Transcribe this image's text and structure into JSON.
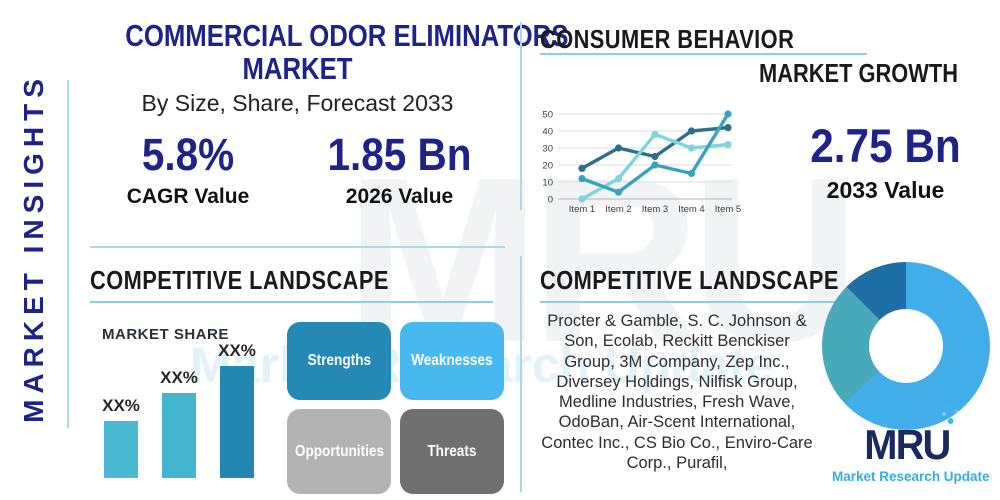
{
  "sidebar": {
    "label": "MARKET INSIGHTS"
  },
  "header": {
    "title_line1": "COMMERCIAL ODOR ELIMINATORS",
    "title_line2": "MARKET",
    "subtitle": "By Size, Share, Forecast 2033"
  },
  "stats": {
    "cagr_value": "5.8%",
    "cagr_label": "CAGR Value",
    "value_2026": "1.85 Bn",
    "label_2026": "2026 Value",
    "value_2033": "2.75 Bn",
    "label_2033": "2033 Value"
  },
  "sections": {
    "consumer_behavior_title": "CONSUMER BEHAVIOR",
    "market_growth_title": "MARKET GROWTH",
    "competitive_left_title": "COMPETITIVE LANDSCAPE",
    "competitive_right_title": "COMPETITIVE LANDSCAPE",
    "companies": "Procter & Gamble, S. C. Johnson & Son, Ecolab, Reckitt Benckiser Group, 3M Company, Zep Inc., Diversey Holdings, Nilfisk Group, Medline Industries, Fresh Wave, OdoBan, Air-Scent International, Contec Inc., CS Bio Co., Enviro-Care Corp., Purafil,"
  },
  "swot": {
    "items": [
      {
        "label": "Strengths",
        "color": "#2589b6"
      },
      {
        "label": "Weaknesses",
        "color": "#47b9f0"
      },
      {
        "label": "Opportunities",
        "color": "#b3b3b3"
      },
      {
        "label": "Threats",
        "color": "#6f6f6f"
      }
    ]
  },
  "chart_data": [
    {
      "type": "line",
      "title": "",
      "categories": [
        "Item 1",
        "Item 2",
        "Item 3",
        "Item 4",
        "Item 5"
      ],
      "series": [
        {
          "color": "#2e6d8e",
          "values": [
            18,
            30,
            25,
            40,
            42
          ]
        },
        {
          "color": "#38a3c1",
          "values": [
            12,
            4,
            20,
            15,
            50
          ]
        },
        {
          "color": "#7fd6d8",
          "values": [
            0,
            12,
            38,
            30,
            32
          ]
        }
      ],
      "ylim": [
        0,
        50
      ],
      "yticks": [
        0,
        10,
        20,
        30,
        40,
        50
      ],
      "grid": true,
      "legend": false
    },
    {
      "type": "bar",
      "title": "MARKET SHARE",
      "categories": [
        "XX%",
        "XX%",
        "XX%"
      ],
      "values": [
        51,
        76,
        100
      ],
      "colors": [
        "#49bad2",
        "#43b5cf",
        "#2387b4"
      ],
      "ylabel": "",
      "xlabel": ""
    },
    {
      "type": "pie",
      "subtype": "donut",
      "values": [
        63,
        24.5,
        12.5
      ],
      "colors": [
        "#41aeea",
        "#48a9bb",
        "#1e6fa8"
      ]
    }
  ],
  "logo": {
    "text": "MRU",
    "tagline": "Market Research Update"
  },
  "watermark": {
    "text": "MRU",
    "subtext": "Market Research Update"
  },
  "colors": {
    "navy": "#1f2286",
    "underline": "#8fcfdd",
    "divider": "#aadbe2"
  }
}
